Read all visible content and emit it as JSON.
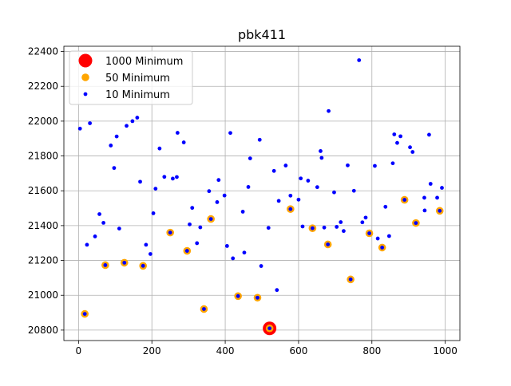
{
  "chart_data": {
    "type": "scatter",
    "title": "pbk411",
    "xlabel": "",
    "ylabel": "",
    "xlim": [
      -40,
      1040
    ],
    "ylim": [
      20740,
      2430
    ],
    "ylim_note": "",
    "x_ticks": [
      0,
      200,
      400,
      600,
      800,
      1000
    ],
    "y_ticks": [
      20800,
      21000,
      21200,
      21400,
      21600,
      21800,
      22000,
      22200,
      22400
    ],
    "grid": true,
    "legend_position": "top-left",
    "series": [
      {
        "name": "1000 Minimum",
        "color": "#ff0000",
        "marker": "large-circle",
        "points": [
          [
            521,
            20810
          ]
        ]
      },
      {
        "name": "50 Minimum",
        "color": "#ffa500",
        "marker": "medium-circle",
        "points": [
          [
            17,
            20893
          ],
          [
            73,
            21173
          ],
          [
            125,
            21187
          ],
          [
            176,
            21169
          ],
          [
            250,
            21360
          ],
          [
            296,
            21255
          ],
          [
            342,
            20921
          ],
          [
            361,
            21438
          ],
          [
            435,
            20995
          ],
          [
            488,
            20986
          ],
          [
            521,
            20810
          ],
          [
            578,
            21495
          ],
          [
            638,
            21385
          ],
          [
            680,
            21292
          ],
          [
            742,
            21091
          ],
          [
            793,
            21356
          ],
          [
            828,
            21274
          ],
          [
            889,
            21548
          ],
          [
            920,
            21415
          ],
          [
            985,
            21485
          ]
        ]
      },
      {
        "name": "10 Minimum",
        "color": "#0000ff",
        "marker": "small-circle",
        "points": [
          [
            4,
            21957
          ],
          [
            17,
            20893
          ],
          [
            23,
            21290
          ],
          [
            31,
            21988
          ],
          [
            45,
            21338
          ],
          [
            57,
            21466
          ],
          [
            68,
            21416
          ],
          [
            73,
            21173
          ],
          [
            88,
            21860
          ],
          [
            97,
            21731
          ],
          [
            104,
            21912
          ],
          [
            111,
            21383
          ],
          [
            125,
            21187
          ],
          [
            131,
            21973
          ],
          [
            147,
            22000
          ],
          [
            160,
            22020
          ],
          [
            168,
            21652
          ],
          [
            176,
            21169
          ],
          [
            184,
            21290
          ],
          [
            196,
            21237
          ],
          [
            204,
            21471
          ],
          [
            210,
            21612
          ],
          [
            221,
            21843
          ],
          [
            234,
            21680
          ],
          [
            250,
            21360
          ],
          [
            257,
            21670
          ],
          [
            268,
            21679
          ],
          [
            270,
            21933
          ],
          [
            287,
            21878
          ],
          [
            296,
            21255
          ],
          [
            303,
            21407
          ],
          [
            310,
            21502
          ],
          [
            323,
            21299
          ],
          [
            332,
            21390
          ],
          [
            342,
            20921
          ],
          [
            356,
            21598
          ],
          [
            361,
            21438
          ],
          [
            378,
            21535
          ],
          [
            382,
            21662
          ],
          [
            398,
            21573
          ],
          [
            405,
            21283
          ],
          [
            414,
            21932
          ],
          [
            421,
            21212
          ],
          [
            435,
            20995
          ],
          [
            448,
            21480
          ],
          [
            452,
            21245
          ],
          [
            463,
            21622
          ],
          [
            468,
            21786
          ],
          [
            488,
            20986
          ],
          [
            494,
            21893
          ],
          [
            498,
            21168
          ],
          [
            518,
            21387
          ],
          [
            521,
            20810
          ],
          [
            533,
            21714
          ],
          [
            541,
            21030
          ],
          [
            546,
            21542
          ],
          [
            565,
            21745
          ],
          [
            578,
            21495
          ],
          [
            578,
            21572
          ],
          [
            600,
            21549
          ],
          [
            606,
            21671
          ],
          [
            611,
            21395
          ],
          [
            626,
            21658
          ],
          [
            638,
            21385
          ],
          [
            651,
            21621
          ],
          [
            660,
            21828
          ],
          [
            663,
            21789
          ],
          [
            670,
            21389
          ],
          [
            680,
            21292
          ],
          [
            682,
            22058
          ],
          [
            697,
            21591
          ],
          [
            704,
            21393
          ],
          [
            715,
            21420
          ],
          [
            723,
            21369
          ],
          [
            734,
            21746
          ],
          [
            742,
            21091
          ],
          [
            751,
            21600
          ],
          [
            765,
            22350
          ],
          [
            774,
            21419
          ],
          [
            783,
            21446
          ],
          [
            793,
            21356
          ],
          [
            808,
            21743
          ],
          [
            816,
            21326
          ],
          [
            828,
            21274
          ],
          [
            837,
            21508
          ],
          [
            847,
            21340
          ],
          [
            857,
            21758
          ],
          [
            861,
            21924
          ],
          [
            869,
            21875
          ],
          [
            878,
            21913
          ],
          [
            889,
            21548
          ],
          [
            904,
            21850
          ],
          [
            911,
            21823
          ],
          [
            920,
            21415
          ],
          [
            943,
            21560
          ],
          [
            944,
            21487
          ],
          [
            956,
            21922
          ],
          [
            960,
            21640
          ],
          [
            978,
            21560
          ],
          [
            985,
            21485
          ],
          [
            991,
            21617
          ]
        ]
      }
    ]
  }
}
